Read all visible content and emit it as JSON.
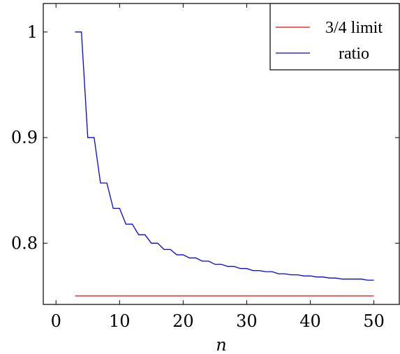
{
  "chart_data": {
    "type": "line",
    "xlabel": "n",
    "ylabel": "",
    "xlim": [
      -2,
      54
    ],
    "ylim": [
      0.742,
      1.027
    ],
    "xticks": [
      0,
      10,
      20,
      30,
      40,
      50
    ],
    "yticks": [
      0.8,
      0.9,
      1
    ],
    "xtick_labels": [
      "0",
      "10",
      "20",
      "30",
      "40",
      "50"
    ],
    "ytick_labels": [
      "0.8",
      "0.9",
      "1"
    ],
    "grid": false,
    "legend_position": "top-right",
    "series": [
      {
        "name": "3/4 limit",
        "color": "#ff0000",
        "x": [
          3,
          50
        ],
        "y": [
          0.75,
          0.75
        ]
      },
      {
        "name": "ratio",
        "color": "#0000ff",
        "x": [
          3,
          4,
          5,
          6,
          7,
          8,
          9,
          10,
          11,
          12,
          13,
          14,
          15,
          16,
          17,
          18,
          19,
          20,
          21,
          22,
          23,
          24,
          25,
          26,
          27,
          28,
          29,
          30,
          31,
          32,
          33,
          34,
          35,
          36,
          37,
          38,
          39,
          40,
          41,
          42,
          43,
          44,
          45,
          46,
          47,
          48,
          49,
          50
        ],
        "y": [
          1.0,
          1.0,
          0.9,
          0.9,
          0.857,
          0.857,
          0.833,
          0.833,
          0.818,
          0.818,
          0.808,
          0.808,
          0.8,
          0.8,
          0.794,
          0.794,
          0.789,
          0.789,
          0.786,
          0.786,
          0.783,
          0.783,
          0.78,
          0.78,
          0.778,
          0.778,
          0.776,
          0.776,
          0.774,
          0.774,
          0.773,
          0.773,
          0.771,
          0.771,
          0.77,
          0.77,
          0.769,
          0.769,
          0.768,
          0.768,
          0.767,
          0.767,
          0.766,
          0.766,
          0.766,
          0.766,
          0.765,
          0.765
        ]
      }
    ]
  }
}
